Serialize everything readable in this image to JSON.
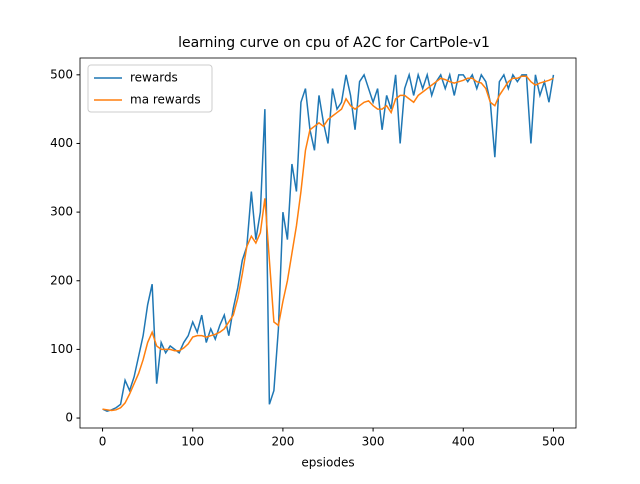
{
  "chart_data": {
    "type": "line",
    "title": "learning curve on cpu of A2C for CartPole-v1",
    "xlabel": "epsiodes",
    "x": [
      0,
      5,
      10,
      15,
      20,
      25,
      30,
      35,
      40,
      45,
      50,
      55,
      60,
      65,
      70,
      75,
      80,
      85,
      90,
      95,
      100,
      105,
      110,
      115,
      120,
      125,
      130,
      135,
      140,
      145,
      150,
      155,
      160,
      165,
      170,
      175,
      180,
      185,
      190,
      195,
      200,
      205,
      210,
      215,
      220,
      225,
      230,
      235,
      240,
      245,
      250,
      255,
      260,
      265,
      270,
      275,
      280,
      285,
      290,
      295,
      300,
      305,
      310,
      315,
      320,
      325,
      330,
      335,
      340,
      345,
      350,
      355,
      360,
      365,
      370,
      375,
      380,
      385,
      390,
      395,
      400,
      405,
      410,
      415,
      420,
      425,
      430,
      435,
      440,
      445,
      450,
      455,
      460,
      465,
      470,
      475,
      480,
      485,
      490,
      495,
      500
    ],
    "series": [
      {
        "name": "rewards",
        "color": "#1f77b4",
        "values": [
          13,
          10,
          12,
          15,
          20,
          55,
          40,
          60,
          90,
          120,
          165,
          195,
          50,
          110,
          95,
          105,
          100,
          95,
          110,
          120,
          140,
          125,
          150,
          110,
          130,
          115,
          135,
          150,
          120,
          160,
          190,
          230,
          250,
          330,
          260,
          300,
          450,
          20,
          40,
          130,
          300,
          260,
          370,
          330,
          460,
          480,
          420,
          390,
          470,
          430,
          400,
          480,
          450,
          460,
          500,
          470,
          420,
          490,
          500,
          480,
          460,
          480,
          420,
          470,
          450,
          500,
          400,
          480,
          500,
          470,
          500,
          480,
          500,
          470,
          490,
          500,
          480,
          500,
          470,
          500,
          500,
          490,
          500,
          480,
          500,
          490,
          460,
          380,
          490,
          500,
          480,
          500,
          490,
          500,
          500,
          400,
          500,
          470,
          490,
          460,
          500
        ]
      },
      {
        "name": "ma rewards",
        "color": "#ff7f0e",
        "values": [
          13,
          12,
          11,
          12,
          15,
          22,
          35,
          50,
          65,
          85,
          110,
          125,
          105,
          100,
          100,
          100,
          98,
          98,
          102,
          108,
          118,
          120,
          120,
          118,
          120,
          122,
          125,
          130,
          140,
          150,
          175,
          210,
          250,
          265,
          255,
          270,
          320,
          230,
          140,
          135,
          170,
          200,
          240,
          280,
          330,
          390,
          420,
          425,
          430,
          425,
          435,
          440,
          445,
          450,
          465,
          455,
          450,
          455,
          460,
          462,
          455,
          450,
          450,
          455,
          445,
          465,
          470,
          470,
          465,
          460,
          470,
          475,
          480,
          485,
          490,
          495,
          493,
          490,
          488,
          490,
          492,
          495,
          495,
          490,
          488,
          480,
          460,
          455,
          470,
          480,
          490,
          495,
          495,
          498,
          498,
          490,
          485,
          488,
          490,
          492,
          495
        ]
      }
    ],
    "xlim": [
      -25,
      525
    ],
    "ylim": [
      -14.5,
      524.5
    ],
    "xticks": [
      0,
      100,
      200,
      300,
      400,
      500
    ],
    "yticks": [
      0,
      100,
      200,
      300,
      400,
      500
    ],
    "grid": false,
    "legend": "upper left"
  }
}
